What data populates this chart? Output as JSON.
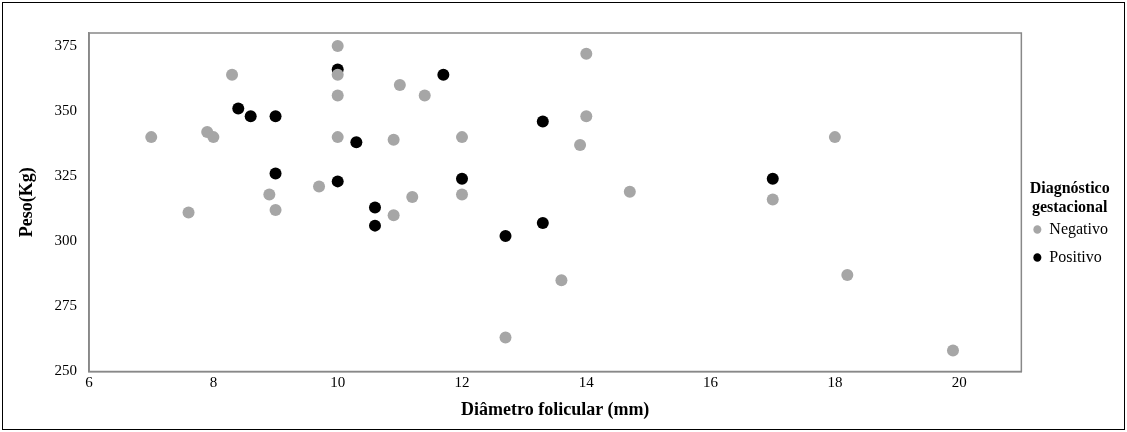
{
  "chart_data": {
    "type": "scatter",
    "xlabel": "Diâmetro folicular (mm)",
    "ylabel": "Peso(Kg)",
    "legend_title": "Diagnóstico gestacional",
    "legend": "right",
    "grid": false,
    "marker": "circle",
    "xlim": [
      6,
      21
    ],
    "xticks": [
      6,
      8,
      10,
      12,
      14,
      16,
      18,
      20
    ],
    "ylim": [
      250,
      380
    ],
    "yticks": [
      250,
      275,
      300,
      325,
      350,
      375
    ],
    "series": [
      {
        "name": "Negativo",
        "color": "#a6a6a6",
        "x": [
          10,
          8.3,
          10,
          11,
          11.4,
          10,
          7,
          7.9,
          8,
          10,
          10.9,
          12,
          9.7,
          8.9,
          11.2,
          12,
          7.6,
          9,
          10.9,
          14,
          14,
          13.9,
          18,
          14.7,
          17,
          13.6,
          18.2,
          12.7,
          19.9
        ],
        "values": [
          375,
          364,
          364,
          360,
          356,
          356,
          340,
          342,
          340,
          340,
          339,
          340,
          321,
          318,
          317,
          318,
          311,
          312,
          310,
          372,
          348,
          337,
          340,
          319,
          316,
          285,
          287,
          263,
          258
        ]
      },
      {
        "name": "Positivo",
        "color": "#000000",
        "x": [
          10,
          11.7,
          8.4,
          8.6,
          9,
          10.3,
          9,
          10,
          12,
          10.6,
          10.6,
          13.3,
          17,
          13.3,
          12.7
        ],
        "values": [
          366,
          364,
          351,
          348,
          348,
          338,
          326,
          323,
          324,
          313,
          306,
          346,
          324,
          307,
          302
        ]
      }
    ]
  }
}
